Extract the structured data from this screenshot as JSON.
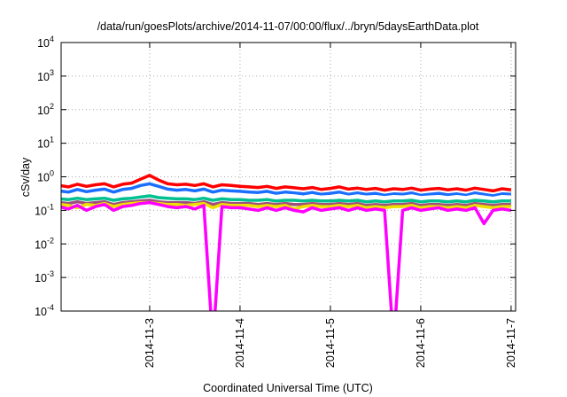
{
  "chart_data": {
    "type": "line",
    "title": "/data/run/goesPlots/archive/2014-11-07/00:00/flux/../bryn/5daysEarthData.plot",
    "xlabel": "Coordinated Universal Time (UTC)",
    "ylabel": "cSv/day",
    "yscale": "log",
    "ylim": [
      0.0001,
      10000
    ],
    "xlim": [
      2.02,
      7.05
    ],
    "grid": true,
    "yticks": [
      {
        "v": 10000,
        "e": "4"
      },
      {
        "v": 1000,
        "e": "3"
      },
      {
        "v": 100,
        "e": "2"
      },
      {
        "v": 10,
        "e": "1"
      },
      {
        "v": 1,
        "e": "0"
      },
      {
        "v": 0.1,
        "e": "-1"
      },
      {
        "v": 0.01,
        "e": "-2"
      },
      {
        "v": 0.001,
        "e": "-3"
      },
      {
        "v": 0.0001,
        "e": "-4"
      }
    ],
    "ytick_base": "10",
    "xticks": [
      {
        "v": 3,
        "label": "2014-11-3"
      },
      {
        "v": 4,
        "label": "2014-11-4"
      },
      {
        "v": 5,
        "label": "2014-11-5"
      },
      {
        "v": 6,
        "label": "2014-11-6"
      },
      {
        "v": 7,
        "label": "2014-11-7"
      }
    ],
    "x_start": 2.0,
    "x_step": 0.1,
    "series": [
      {
        "name": "red",
        "color": "#ff0000",
        "values": [
          0.55,
          0.5,
          0.6,
          0.52,
          0.58,
          0.62,
          0.5,
          0.6,
          0.65,
          0.85,
          1.1,
          0.8,
          0.62,
          0.58,
          0.6,
          0.55,
          0.62,
          0.5,
          0.58,
          0.55,
          0.52,
          0.5,
          0.48,
          0.52,
          0.45,
          0.5,
          0.47,
          0.44,
          0.48,
          0.42,
          0.45,
          0.5,
          0.43,
          0.46,
          0.42,
          0.45,
          0.4,
          0.44,
          0.42,
          0.46,
          0.4,
          0.43,
          0.45,
          0.41,
          0.44,
          0.4,
          0.46,
          0.42,
          0.38,
          0.44,
          0.41
        ]
      },
      {
        "name": "blue",
        "color": "#1a6fff",
        "values": [
          0.38,
          0.35,
          0.42,
          0.36,
          0.4,
          0.43,
          0.35,
          0.42,
          0.45,
          0.55,
          0.62,
          0.52,
          0.43,
          0.4,
          0.42,
          0.38,
          0.43,
          0.35,
          0.4,
          0.38,
          0.37,
          0.35,
          0.34,
          0.37,
          0.32,
          0.35,
          0.33,
          0.31,
          0.34,
          0.3,
          0.32,
          0.35,
          0.3,
          0.33,
          0.3,
          0.32,
          0.28,
          0.31,
          0.3,
          0.33,
          0.28,
          0.3,
          0.32,
          0.29,
          0.31,
          0.28,
          0.33,
          0.3,
          0.27,
          0.31,
          0.3
        ]
      },
      {
        "name": "white",
        "color": "#ffffff",
        "values": [
          0.3,
          0.28,
          0.32,
          0.29,
          0.31,
          0.33,
          0.28,
          0.32,
          0.34,
          0.4,
          0.45,
          0.38,
          0.33,
          0.31,
          0.32,
          0.3,
          0.33,
          0.28,
          0.31,
          0.3,
          0.29,
          0.28,
          0.27,
          0.29,
          0.26,
          0.28,
          0.27,
          0.25,
          0.27,
          0.25,
          0.26,
          0.28,
          0.25,
          0.27,
          0.25,
          0.26,
          0.24,
          0.26,
          0.25,
          0.27,
          0.24,
          0.25,
          0.26,
          0.24,
          0.26,
          0.24,
          0.27,
          0.25,
          0.23,
          0.26,
          0.25
        ]
      },
      {
        "name": "teal",
        "color": "#00c090",
        "values": [
          0.22,
          0.21,
          0.23,
          0.21,
          0.22,
          0.23,
          0.2,
          0.22,
          0.23,
          0.25,
          0.27,
          0.24,
          0.23,
          0.22,
          0.22,
          0.21,
          0.23,
          0.2,
          0.22,
          0.21,
          0.21,
          0.2,
          0.2,
          0.21,
          0.19,
          0.2,
          0.2,
          0.19,
          0.2,
          0.19,
          0.19,
          0.2,
          0.19,
          0.2,
          0.18,
          0.19,
          0.18,
          0.19,
          0.19,
          0.2,
          0.18,
          0.19,
          0.19,
          0.18,
          0.19,
          0.18,
          0.2,
          0.19,
          0.18,
          0.19,
          0.19
        ]
      },
      {
        "name": "brown",
        "color": "#a0507a",
        "values": [
          0.17,
          0.16,
          0.18,
          0.16,
          0.17,
          0.18,
          0.15,
          0.17,
          0.18,
          0.19,
          0.2,
          0.18,
          0.17,
          0.17,
          0.17,
          0.16,
          0.18,
          0.15,
          0.17,
          0.16,
          0.16,
          0.16,
          0.15,
          0.16,
          0.15,
          0.16,
          0.15,
          0.15,
          0.16,
          0.15,
          0.15,
          0.16,
          0.15,
          0.16,
          0.14,
          0.15,
          0.14,
          0.15,
          0.15,
          0.16,
          0.14,
          0.15,
          0.15,
          0.14,
          0.15,
          0.14,
          0.16,
          0.15,
          0.14,
          0.15,
          0.15
        ]
      },
      {
        "name": "yellow",
        "color": "#f0e000",
        "values": [
          0.15,
          0.14,
          0.12,
          0.15,
          0.14,
          0.16,
          0.13,
          0.15,
          0.16,
          0.17,
          0.17,
          0.16,
          0.15,
          0.15,
          0.14,
          0.15,
          0.16,
          0.12,
          0.15,
          0.14,
          0.14,
          0.14,
          0.13,
          0.14,
          0.13,
          0.14,
          0.11,
          0.13,
          0.14,
          0.13,
          0.13,
          0.14,
          0.13,
          0.14,
          0.12,
          0.13,
          0.12,
          0.13,
          0.13,
          0.14,
          0.12,
          0.13,
          0.13,
          0.12,
          0.13,
          0.12,
          0.14,
          0.13,
          0.12,
          0.13,
          0.13
        ]
      },
      {
        "name": "magenta",
        "color": "#ff00ff",
        "values": [
          0.13,
          0.11,
          0.14,
          0.1,
          0.13,
          0.15,
          0.1,
          0.13,
          0.14,
          0.16,
          0.17,
          0.15,
          0.13,
          0.12,
          0.13,
          0.11,
          0.14,
          1e-05,
          0.13,
          0.12,
          0.12,
          0.11,
          0.1,
          0.12,
          0.1,
          0.12,
          0.1,
          0.09,
          0.12,
          0.1,
          0.11,
          0.12,
          0.1,
          0.12,
          0.1,
          0.11,
          0.1,
          1e-05,
          0.1,
          0.12,
          0.1,
          0.11,
          0.12,
          0.1,
          0.11,
          0.1,
          0.12,
          0.04,
          0.1,
          0.11,
          0.1
        ]
      }
    ]
  }
}
